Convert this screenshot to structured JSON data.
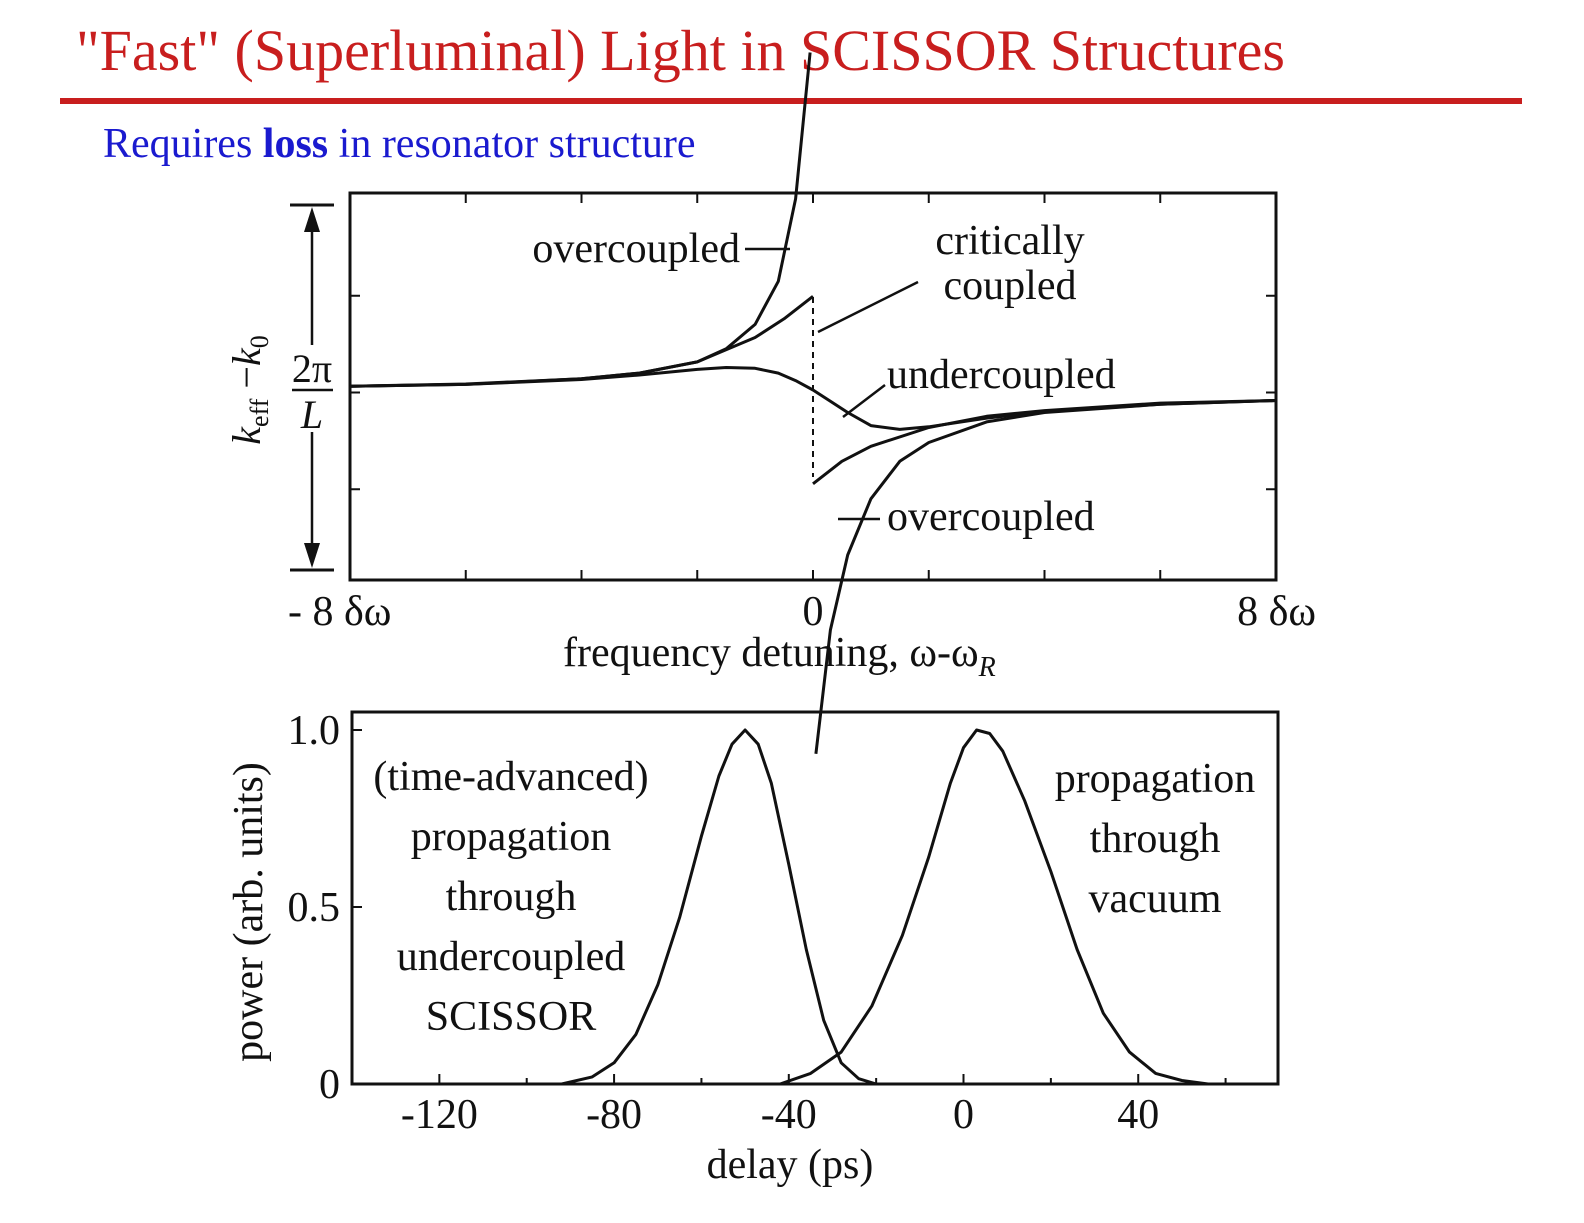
{
  "theme": {
    "title_color": "#c81e1e",
    "subtitle_color": "#1a1acf",
    "ink": "#111111"
  },
  "slide": {
    "title": "\"Fast\" (Superluminal) Light in SCISSOR Structures",
    "subtitle_pre": "Requires ",
    "subtitle_bold": "loss",
    "subtitle_post": " in resonator structure"
  },
  "chart_data": [
    {
      "type": "line",
      "title": "",
      "xlabel": "frequency detuning, ω-ω",
      "xlabel_sub": "R",
      "ylabel": "k_eff − k_0",
      "xlim": [
        -8,
        8
      ],
      "x_tick_labels": [
        "- 8 δω",
        "0",
        "8 δω"
      ],
      "y_scale_label": {
        "numerator": "2π",
        "denominator": "L"
      },
      "series": [
        {
          "name": "overcoupled",
          "branches": [
            {
              "x": [
                -8,
                -6,
                -4,
                -3,
                -2,
                -1.5,
                -1,
                -0.6,
                -0.3,
                -0.05
              ],
              "y": [
                0.01,
                0.016,
                0.03,
                0.045,
                0.075,
                0.11,
                0.175,
                0.29,
                0.51,
                0.9
              ]
            },
            {
              "x": [
                0.05,
                0.3,
                0.6,
                1,
                1.5,
                2,
                3,
                4,
                6,
                8
              ],
              "y": [
                -0.97,
                -0.64,
                -0.44,
                -0.29,
                -0.19,
                -0.14,
                -0.085,
                -0.06,
                -0.038,
                -0.028
              ]
            }
          ]
        },
        {
          "name": "critically coupled",
          "branches": [
            {
              "x": [
                -8,
                -6,
                -4,
                -3,
                -2,
                -1,
                -0.5,
                0
              ],
              "y": [
                0.01,
                0.015,
                0.03,
                0.045,
                0.075,
                0.14,
                0.19,
                0.25
              ]
            },
            {
              "x": [
                0,
                0.5,
                1,
                2,
                3,
                4,
                6,
                8
              ],
              "y": [
                -0.25,
                -0.19,
                -0.15,
                -0.1,
                -0.07,
                -0.055,
                -0.035,
                -0.028
              ]
            }
          ]
        },
        {
          "name": "undercoupled",
          "branches": [
            {
              "x": [
                -8,
                -6,
                -4,
                -3,
                -2,
                -1.5,
                -1,
                -0.6,
                -0.3,
                0,
                0.3,
                0.6,
                1,
                1.5,
                2,
                3,
                4,
                6,
                8
              ],
              "y": [
                0.01,
                0.015,
                0.028,
                0.04,
                0.055,
                0.06,
                0.058,
                0.045,
                0.025,
                0.0,
                -0.03,
                -0.06,
                -0.095,
                -0.105,
                -0.098,
                -0.075,
                -0.058,
                -0.038,
                -0.028
              ]
            }
          ]
        }
      ],
      "annotations": [
        "overcoupled",
        "critically",
        "coupled",
        "undercoupled",
        "overcoupled"
      ]
    },
    {
      "type": "line",
      "title": "",
      "xlabel": "delay (ps)",
      "ylabel": "power (arb. units)",
      "xlim": [
        -140,
        72
      ],
      "ylim": [
        0,
        1.0
      ],
      "x_ticks": [
        -120,
        -80,
        -40,
        0,
        40
      ],
      "x_tick_labels": [
        "-120",
        "-80",
        "-40",
        "0",
        "40"
      ],
      "y_ticks": [
        0,
        0.5,
        1.0
      ],
      "y_tick_labels": [
        "0",
        "0.5",
        "1.0"
      ],
      "series": [
        {
          "name": "(time-advanced) propagation through undercoupled SCISSOR",
          "x": [
            -92,
            -85,
            -80,
            -75,
            -70,
            -65,
            -60,
            -56,
            -53,
            -50,
            -47,
            -44,
            -40,
            -36,
            -32,
            -28,
            -24,
            -20
          ],
          "y": [
            0.0,
            0.02,
            0.06,
            0.14,
            0.28,
            0.47,
            0.7,
            0.87,
            0.96,
            1.0,
            0.96,
            0.85,
            0.62,
            0.38,
            0.18,
            0.06,
            0.015,
            0.0
          ]
        },
        {
          "name": "propagation through vacuum",
          "x": [
            -42,
            -35,
            -28,
            -21,
            -14,
            -8,
            -3,
            0,
            3,
            6,
            9,
            14,
            20,
            26,
            32,
            38,
            44,
            50,
            56
          ],
          "y": [
            0.0,
            0.03,
            0.09,
            0.22,
            0.42,
            0.64,
            0.85,
            0.95,
            1.0,
            0.99,
            0.94,
            0.8,
            0.6,
            0.38,
            0.2,
            0.09,
            0.03,
            0.01,
            0.0
          ]
        }
      ],
      "annotations": {
        "left": [
          "(time-advanced)",
          "propagation",
          "through",
          "undercoupled",
          "SCISSOR"
        ],
        "right": [
          "propagation",
          "through",
          "vacuum"
        ]
      }
    }
  ]
}
